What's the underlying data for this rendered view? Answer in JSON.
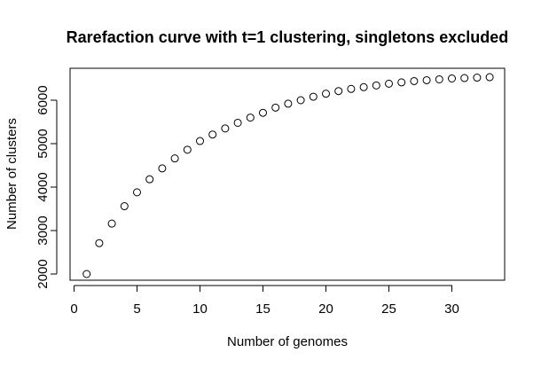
{
  "chart_data": {
    "type": "scatter",
    "title": "Rarefaction curve with t=1 clustering, singletons excluded",
    "xlabel": "Number of genomes",
    "ylabel": "Number of clusters",
    "xlim": [
      0,
      33
    ],
    "ylim": [
      2000,
      6500
    ],
    "x_ticks": [
      0,
      5,
      10,
      15,
      20,
      25,
      30
    ],
    "y_ticks": [
      2000,
      3000,
      4000,
      5000,
      6000
    ],
    "grid": false,
    "marker": "open-circle",
    "x": [
      1,
      2,
      3,
      4,
      5,
      6,
      7,
      8,
      9,
      10,
      11,
      12,
      13,
      14,
      15,
      16,
      17,
      18,
      19,
      20,
      21,
      22,
      23,
      24,
      25,
      26,
      27,
      28,
      29,
      30,
      31,
      32,
      33
    ],
    "y": [
      2000,
      2710,
      3160,
      3560,
      3880,
      4180,
      4430,
      4660,
      4860,
      5060,
      5210,
      5350,
      5480,
      5600,
      5710,
      5830,
      5920,
      6000,
      6080,
      6150,
      6210,
      6260,
      6300,
      6340,
      6380,
      6410,
      6440,
      6460,
      6480,
      6500,
      6510,
      6520,
      6530
    ]
  }
}
